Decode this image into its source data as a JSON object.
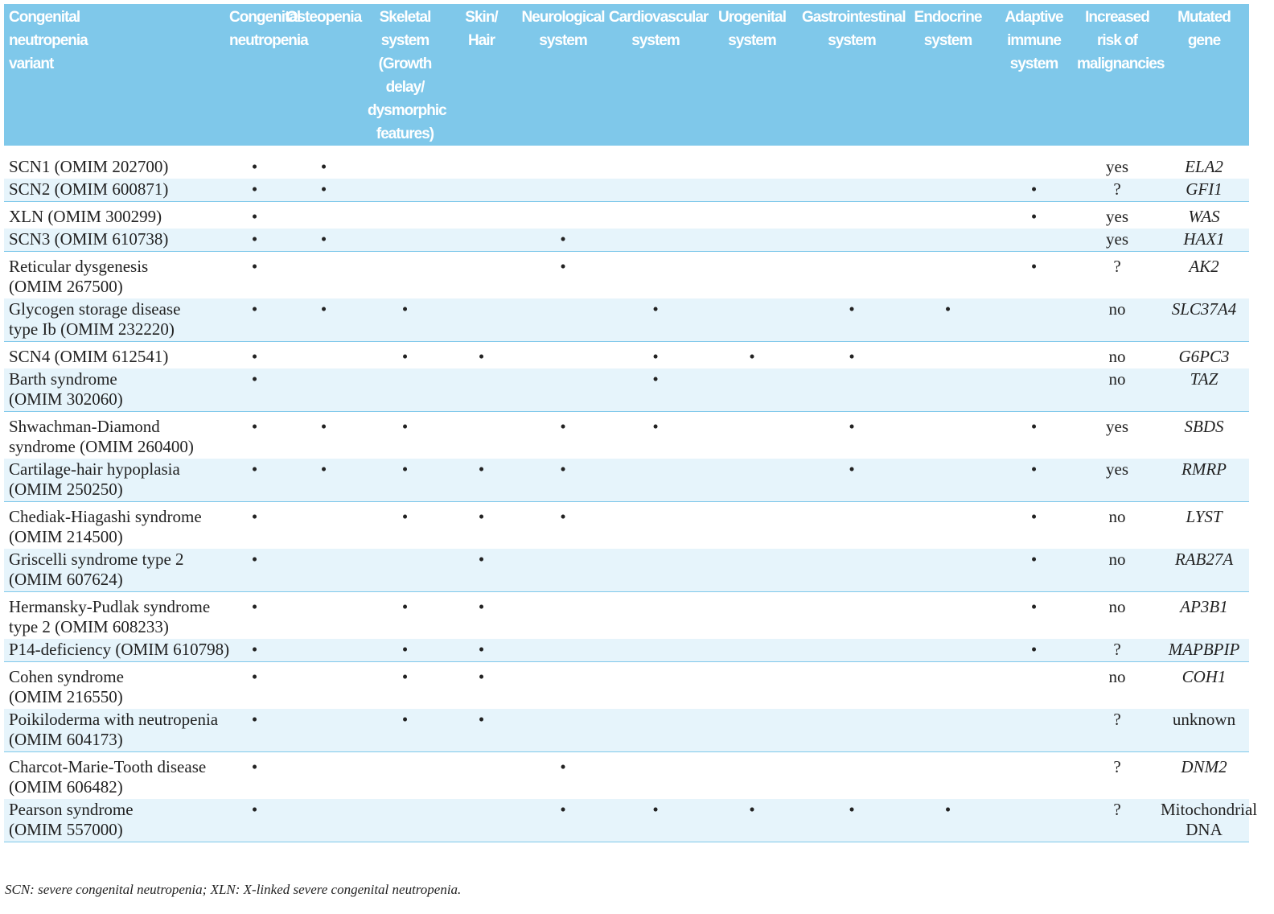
{
  "table": {
    "header": [
      [
        "Congenital",
        "neutropenia",
        "variant"
      ],
      [
        "Congenital",
        "neutropenia"
      ],
      [
        "Osteopenia"
      ],
      [
        "Skeletal",
        "system",
        "(Growth delay/",
        "dysmorphic",
        "features)"
      ],
      [
        "Skin/",
        "Hair"
      ],
      [
        "Neurological",
        "system"
      ],
      [
        "Cardiovascular",
        "system"
      ],
      [
        "Urogenital",
        "system"
      ],
      [
        "Gastrointestinal",
        "system"
      ],
      [
        "Endocrine",
        "system"
      ],
      [
        "Adaptive",
        "immune",
        "system"
      ],
      [
        "Increased",
        "risk of",
        "malignancies"
      ],
      [
        "Mutated",
        "gene"
      ]
    ],
    "groups": [
      [
        {
          "variant": [
            "SCN1 (OMIM 202700)"
          ],
          "cells": [
            "•",
            "•",
            null,
            null,
            null,
            null,
            null,
            null,
            null,
            null,
            "yes",
            "ELA2"
          ],
          "gene_italic": true
        },
        {
          "variant": [
            "SCN2 (OMIM 600871)"
          ],
          "cells": [
            "•",
            "•",
            null,
            null,
            null,
            null,
            null,
            null,
            null,
            "•",
            "?",
            "GFI1"
          ],
          "gene_italic": true
        }
      ],
      [
        {
          "variant": [
            "XLN (OMIM 300299)"
          ],
          "cells": [
            "•",
            null,
            null,
            null,
            null,
            null,
            null,
            null,
            null,
            "•",
            "yes",
            "WAS"
          ],
          "gene_italic": true
        },
        {
          "variant": [
            "SCN3 (OMIM 610738)"
          ],
          "cells": [
            "•",
            "•",
            null,
            null,
            "•",
            null,
            null,
            null,
            null,
            null,
            "yes",
            "HAX1"
          ],
          "gene_italic": true
        }
      ],
      [
        {
          "variant": [
            "Reticular dysgenesis",
            "(OMIM 267500)"
          ],
          "cells": [
            "•",
            null,
            null,
            null,
            "•",
            null,
            null,
            null,
            null,
            "•",
            "?",
            "AK2"
          ],
          "gene_italic": true
        },
        {
          "variant": [
            "Glycogen storage disease",
            "type Ib (OMIM 232220)"
          ],
          "cells": [
            "•",
            "•",
            "•",
            null,
            null,
            "•",
            null,
            "•",
            "•",
            null,
            "no",
            "SLC37A4"
          ],
          "gene_italic": true
        }
      ],
      [
        {
          "variant": [
            "SCN4 (OMIM 612541)"
          ],
          "cells": [
            "•",
            null,
            "•",
            "•",
            null,
            "•",
            "•",
            "•",
            null,
            null,
            "no",
            "G6PC3"
          ],
          "gene_italic": true
        },
        {
          "variant": [
            "Barth syndrome",
            "(OMIM 302060)"
          ],
          "cells": [
            "•",
            null,
            null,
            null,
            null,
            "•",
            null,
            null,
            null,
            null,
            "no",
            "TAZ"
          ],
          "gene_italic": true
        }
      ],
      [
        {
          "variant": [
            "Shwachman-Diamond",
            "syndrome (OMIM 260400)"
          ],
          "cells": [
            "•",
            "•",
            "•",
            null,
            "•",
            "•",
            null,
            "•",
            null,
            "•",
            "yes",
            "SBDS"
          ],
          "gene_italic": true
        },
        {
          "variant": [
            "Cartilage-hair hypoplasia",
            "(OMIM 250250)"
          ],
          "cells": [
            "•",
            "•",
            "•",
            "•",
            "•",
            null,
            null,
            "•",
            null,
            "•",
            "yes",
            "RMRP"
          ],
          "gene_italic": true
        }
      ],
      [
        {
          "variant": [
            "Chediak-Hiagashi syndrome",
            "(OMIM 214500)"
          ],
          "cells": [
            "•",
            null,
            "•",
            "•",
            "•",
            null,
            null,
            null,
            null,
            "•",
            "no",
            "LYST"
          ],
          "gene_italic": true
        },
        {
          "variant": [
            "Griscelli syndrome type 2",
            "(OMIM 607624)"
          ],
          "cells": [
            "•",
            null,
            null,
            "•",
            null,
            null,
            null,
            null,
            null,
            "•",
            "no",
            "RAB27A"
          ],
          "gene_italic": true
        }
      ],
      [
        {
          "variant": [
            "Hermansky-Pudlak syndrome",
            "type 2 (OMIM 608233)"
          ],
          "cells": [
            "•",
            null,
            "•",
            "•",
            null,
            null,
            null,
            null,
            null,
            "•",
            "no",
            "AP3B1"
          ],
          "gene_italic": true
        },
        {
          "variant": [
            "P14-deficiency (OMIM 610798)"
          ],
          "cells": [
            "•",
            null,
            "•",
            "•",
            null,
            null,
            null,
            null,
            null,
            "•",
            "?",
            "MAPBPIP"
          ],
          "gene_italic": true
        }
      ],
      [
        {
          "variant": [
            "Cohen syndrome",
            "(OMIM 216550)"
          ],
          "cells": [
            "•",
            null,
            "•",
            "•",
            null,
            null,
            null,
            null,
            null,
            null,
            "no",
            "COH1"
          ],
          "gene_italic": true
        },
        {
          "variant": [
            "Poikiloderma with neutropenia",
            "(OMIM 604173)"
          ],
          "cells": [
            "•",
            null,
            "•",
            "•",
            null,
            null,
            null,
            null,
            null,
            null,
            "?",
            "unknown"
          ],
          "gene_italic": false
        }
      ],
      [
        {
          "variant": [
            "Charcot-Marie-Tooth disease",
            "(OMIM 606482)"
          ],
          "cells": [
            "•",
            null,
            null,
            null,
            "•",
            null,
            null,
            null,
            null,
            null,
            "?",
            "DNM2"
          ],
          "gene_italic": true
        },
        {
          "variant": [
            "Pearson syndrome",
            "(OMIM 557000)"
          ],
          "cells": [
            "•",
            null,
            null,
            null,
            "•",
            "•",
            "•",
            "•",
            "•",
            null,
            "?",
            [
              "Mitochondrial",
              "DNA"
            ]
          ],
          "gene_italic": false
        }
      ]
    ]
  },
  "footnote": "SCN: severe congenital neutropenia; XLN: X-linked severe congenital neutropenia."
}
